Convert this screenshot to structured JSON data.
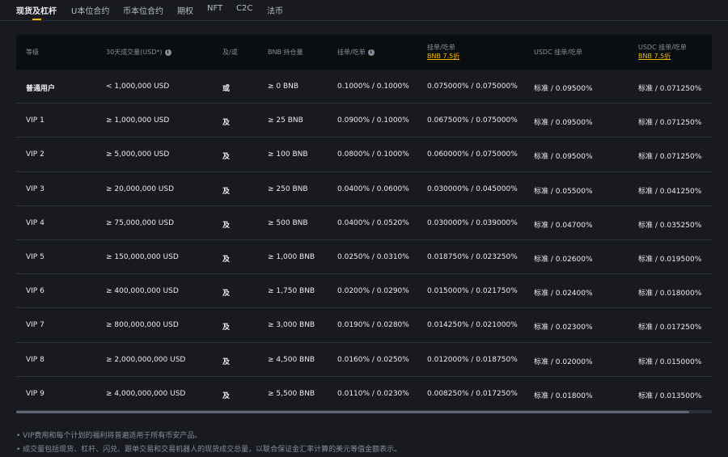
{
  "tabs": [
    "现货及杠杆",
    "U本位合约",
    "币本位合约",
    "期权",
    "NFT",
    "C2C",
    "法币"
  ],
  "active_tab": 0,
  "accent_color": "#f0b90b",
  "headers": {
    "level": "等级",
    "volume": "30天成交量(USD*)",
    "andor": "及/或",
    "bnb": "BNB 持仓量",
    "maker_taker": "挂单/吃单",
    "maker_taker_bnb": "挂单/吃单",
    "bnb_discount": "BNB 7.5折",
    "usdc": "USDC 挂单/吃单",
    "usdc_bnb": "USDC 挂单/吃单",
    "usdc_bnb_discount": "BNB 7.5折"
  },
  "rows": [
    [
      "普通用户",
      "< 1,000,000 USD",
      "或",
      "≥ 0 BNB",
      "0.1000% / 0.1000%",
      "0.075000% / 0.075000%",
      "标准 / 0.09500%",
      "标准 / 0.071250%"
    ],
    [
      "VIP 1",
      "≥ 1,000,000 USD",
      "及",
      "≥ 25 BNB",
      "0.0900% / 0.1000%",
      "0.067500% / 0.075000%",
      "标准 / 0.09500%",
      "标准 / 0.071250%"
    ],
    [
      "VIP 2",
      "≥ 5,000,000 USD",
      "及",
      "≥ 100 BNB",
      "0.0800% / 0.1000%",
      "0.060000% / 0.075000%",
      "标准 / 0.09500%",
      "标准 / 0.071250%"
    ],
    [
      "VIP 3",
      "≥ 20,000,000 USD",
      "及",
      "≥ 250 BNB",
      "0.0400% / 0.0600%",
      "0.030000% / 0.045000%",
      "标准 / 0.05500%",
      "标准 / 0.041250%"
    ],
    [
      "VIP 4",
      "≥ 75,000,000 USD",
      "及",
      "≥ 500 BNB",
      "0.0400% / 0.0520%",
      "0.030000% / 0.039000%",
      "标准 / 0.04700%",
      "标准 / 0.035250%"
    ],
    [
      "VIP 5",
      "≥ 150,000,000 USD",
      "及",
      "≥ 1,000 BNB",
      "0.0250% / 0.0310%",
      "0.018750% / 0.023250%",
      "标准 / 0.02600%",
      "标准 / 0.019500%"
    ],
    [
      "VIP 6",
      "≥ 400,000,000 USD",
      "及",
      "≥ 1,750 BNB",
      "0.0200% / 0.0290%",
      "0.015000% / 0.021750%",
      "标准 / 0.02400%",
      "标准 / 0.018000%"
    ],
    [
      "VIP 7",
      "≥ 800,000,000 USD",
      "及",
      "≥ 3,000 BNB",
      "0.0190% / 0.0280%",
      "0.014250% / 0.021000%",
      "标准 / 0.02300%",
      "标准 / 0.017250%"
    ],
    [
      "VIP 8",
      "≥ 2,000,000,000 USD",
      "及",
      "≥ 4,500 BNB",
      "0.0160% / 0.0250%",
      "0.012000% / 0.018750%",
      "标准 / 0.02000%",
      "标准 / 0.015000%"
    ],
    [
      "VIP 9",
      "≥ 4,000,000,000 USD",
      "及",
      "≥ 5,500 BNB",
      "0.0110% / 0.0230%",
      "0.008250% / 0.017250%",
      "标准 / 0.01800%",
      "标准 / 0.013500%"
    ]
  ],
  "notes": [
    "VIP费用和每个计划的福利将普遍适用于所有币安产品。",
    "成交量包括现货、杠杆、闪兑、跟单交易和交易机器人的现货成交总量，以联合保证金汇率计算的美元等值金额表示。"
  ]
}
